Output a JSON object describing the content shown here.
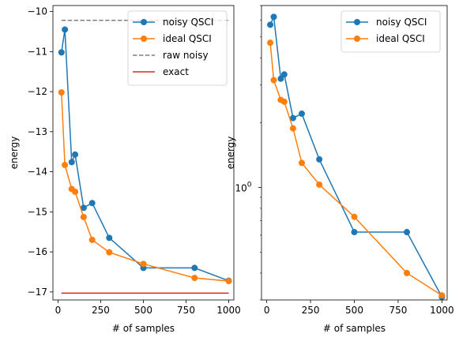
{
  "chart_data": [
    {
      "type": "line",
      "yscale": "linear",
      "xlabel": "# of samples",
      "ylabel": "energy",
      "xlim": [
        -30,
        1030
      ],
      "ylim": [
        -17.2,
        -9.85
      ],
      "xticks": [
        0,
        250,
        500,
        750,
        1000
      ],
      "yticks": [
        -17,
        -16,
        -15,
        -14,
        -13,
        -12,
        -11,
        -10
      ],
      "legend": "top-right",
      "grid": false,
      "series": [
        {
          "name": "noisy QSCI",
          "color": "#1f77b4",
          "marker": true,
          "dash": false,
          "x": [
            20,
            40,
            80,
            100,
            150,
            200,
            300,
            500,
            800,
            1000
          ],
          "y": [
            -11.02,
            -10.45,
            -13.76,
            -13.57,
            -14.9,
            -14.78,
            -15.65,
            -16.4,
            -16.4,
            -16.72
          ]
        },
        {
          "name": "ideal QSCI",
          "color": "#ff7f0e",
          "marker": true,
          "dash": false,
          "x": [
            20,
            40,
            80,
            100,
            150,
            200,
            300,
            500,
            800,
            1000
          ],
          "y": [
            -12.02,
            -13.83,
            -14.43,
            -14.5,
            -15.13,
            -15.7,
            -16.01,
            -16.3,
            -16.65,
            -16.73
          ]
        },
        {
          "name": "raw noisy",
          "color": "#7f7f7f",
          "marker": false,
          "dash": true,
          "x": [
            20,
            1000
          ],
          "y": [
            -10.22,
            -10.22
          ]
        },
        {
          "name": "exact",
          "color": "#d62728",
          "marker": false,
          "dash": false,
          "x": [
            20,
            1000
          ],
          "y": [
            -17.03,
            -17.03
          ]
        }
      ]
    },
    {
      "type": "line",
      "yscale": "log",
      "xlabel": "# of samples",
      "ylabel": "energy",
      "xlim": [
        -30,
        1030
      ],
      "ylim": [
        0.3,
        7.0
      ],
      "xticks": [
        0,
        250,
        500,
        750,
        1000
      ],
      "yticks": [
        1
      ],
      "ytick_labels": [
        "10^0"
      ],
      "legend": "top-right",
      "grid": false,
      "series": [
        {
          "name": "noisy QSCI",
          "color": "#1f77b4",
          "marker": true,
          "dash": false,
          "x": [
            20,
            40,
            80,
            100,
            150,
            200,
            300,
            500,
            800,
            1000
          ],
          "y": [
            5.7,
            6.2,
            3.2,
            3.35,
            2.1,
            2.2,
            1.35,
            0.62,
            0.62,
            0.31
          ]
        },
        {
          "name": "ideal QSCI",
          "color": "#ff7f0e",
          "marker": true,
          "dash": false,
          "x": [
            20,
            40,
            80,
            100,
            150,
            200,
            300,
            500,
            800,
            1000
          ],
          "y": [
            4.7,
            3.15,
            2.55,
            2.5,
            1.88,
            1.3,
            1.03,
            0.73,
            0.4,
            0.315
          ]
        }
      ]
    }
  ]
}
